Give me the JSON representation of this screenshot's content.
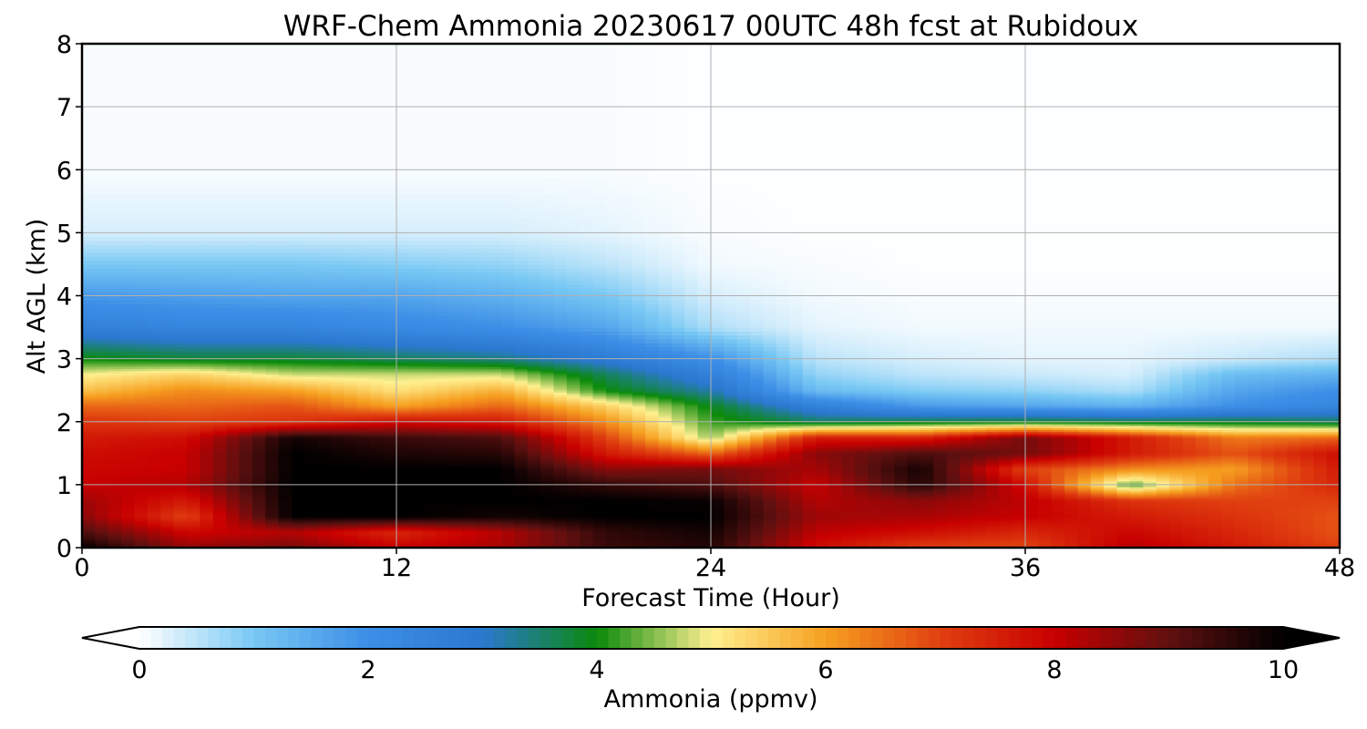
{
  "chart_data": {
    "type": "heatmap",
    "title": "WRF-Chem Ammonia  20230617 00UTC 48h fcst at Rubidoux",
    "xlabel": "Forecast Time (Hour)",
    "ylabel": "Alt AGL (km)",
    "xlim": [
      0,
      48
    ],
    "ylim": [
      0,
      8
    ],
    "x_ticks": [
      "0",
      "12",
      "24",
      "36",
      "48"
    ],
    "y_ticks": [
      "0",
      "1",
      "2",
      "3",
      "4",
      "5",
      "6",
      "7",
      "8"
    ],
    "grid": true,
    "colorbar": {
      "label": "Ammonia  (ppmv)",
      "range": [
        0,
        10
      ],
      "ticks": [
        "0",
        "2",
        "4",
        "6",
        "8",
        "10"
      ],
      "extend": "both",
      "colors": {
        "0": "#ffffff",
        "1": "#78c8f4",
        "2": "#3c8ee6",
        "3": "#2a78d0",
        "4": "#0a8a0a",
        "5": "#fff090",
        "6": "#f6a020",
        "7": "#e04010",
        "8": "#c80000",
        "9": "#601010",
        "10": "#000000"
      }
    },
    "times": [
      0,
      4,
      8,
      12,
      16,
      20,
      24,
      28,
      32,
      36,
      40,
      44,
      48
    ],
    "altitudes": [
      0,
      0.25,
      0.5,
      0.75,
      1.0,
      1.25,
      1.5,
      1.75,
      2.0,
      2.25,
      2.5,
      2.75,
      3.0,
      3.5,
      4.0,
      4.5,
      5.0,
      6.0,
      7.0,
      8.0
    ],
    "values": [
      [
        10,
        8.5,
        8.8,
        8.0,
        8.3,
        9.4,
        9.6,
        7.8,
        7.0,
        6.9,
        8.2,
        7.6,
        7.0
      ],
      [
        9.2,
        7.9,
        8.2,
        7.4,
        8.2,
        9.5,
        9.8,
        8.1,
        7.8,
        7.4,
        7.9,
        7.4,
        6.8
      ],
      [
        8.6,
        7.0,
        10,
        10,
        9.8,
        10,
        10,
        8.4,
        8.3,
        8.0,
        7.6,
        7.2,
        6.8
      ],
      [
        8.4,
        7.6,
        10,
        10,
        10,
        10,
        9.9,
        8.2,
        8.6,
        8.1,
        7.2,
        7.0,
        7.0
      ],
      [
        8.0,
        8.2,
        10,
        10,
        10,
        9.5,
        9.2,
        8.0,
        9.6,
        7.8,
        4.2,
        6.5,
        7.4
      ],
      [
        7.9,
        8.0,
        10,
        10,
        10,
        8.6,
        8.8,
        8.3,
        9.8,
        7.0,
        6.2,
        6.0,
        7.6
      ],
      [
        7.8,
        8.0,
        10,
        9.7,
        9.6,
        7.6,
        6.6,
        8.6,
        9.2,
        8.8,
        7.6,
        6.8,
        7.8
      ],
      [
        7.6,
        7.8,
        9.8,
        9.4,
        9.2,
        7.0,
        4.6,
        7.6,
        7.5,
        8.8,
        7.6,
        6.4,
        6.6
      ],
      [
        7.2,
        7.0,
        7.2,
        7.8,
        7.6,
        6.2,
        4.2,
        3.6,
        3.8,
        3.9,
        3.8,
        3.8,
        3.6
      ],
      [
        6.6,
        6.6,
        6.8,
        6.0,
        6.6,
        5.4,
        3.9,
        2.6,
        1.8,
        1.6,
        1.4,
        2.0,
        2.4
      ],
      [
        5.6,
        6.2,
        6.0,
        5.2,
        5.8,
        4.0,
        3.2,
        1.2,
        0.9,
        0.8,
        0.6,
        1.6,
        2.0
      ],
      [
        5.0,
        5.4,
        4.8,
        4.8,
        4.8,
        3.6,
        2.6,
        0.8,
        0.5,
        0.4,
        0.3,
        1.2,
        1.4
      ],
      [
        4.0,
        3.8,
        3.8,
        3.6,
        3.4,
        2.8,
        2.0,
        0.5,
        0.3,
        0.2,
        0.2,
        0.4,
        0.6
      ],
      [
        2.6,
        2.4,
        2.4,
        2.2,
        2.0,
        1.6,
        0.6,
        0.2,
        0.1,
        0.1,
        0.1,
        0.1,
        0.1
      ],
      [
        1.8,
        1.7,
        1.6,
        1.6,
        1.4,
        1.0,
        0.3,
        0.1,
        0.05,
        0.05,
        0.05,
        0.05,
        0.05
      ],
      [
        1.0,
        1.0,
        1.0,
        0.9,
        0.8,
        0.5,
        0.1,
        0.05,
        0.02,
        0.02,
        0.02,
        0.02,
        0.02
      ],
      [
        0.3,
        0.3,
        0.3,
        0.3,
        0.3,
        0.2,
        0.05,
        0.02,
        0.02,
        0.02,
        0.02,
        0.02,
        0.02
      ],
      [
        0.05,
        0.05,
        0.05,
        0.05,
        0.05,
        0.05,
        0.02,
        0.02,
        0.02,
        0.02,
        0.02,
        0.02,
        0.02
      ],
      [
        0.05,
        0.05,
        0.05,
        0.05,
        0.05,
        0.05,
        0.02,
        0.02,
        0.02,
        0.02,
        0.02,
        0.02,
        0.02
      ],
      [
        0.05,
        0.05,
        0.05,
        0.05,
        0.05,
        0.05,
        0.02,
        0.02,
        0.02,
        0.02,
        0.02,
        0.02,
        0.02
      ]
    ]
  }
}
